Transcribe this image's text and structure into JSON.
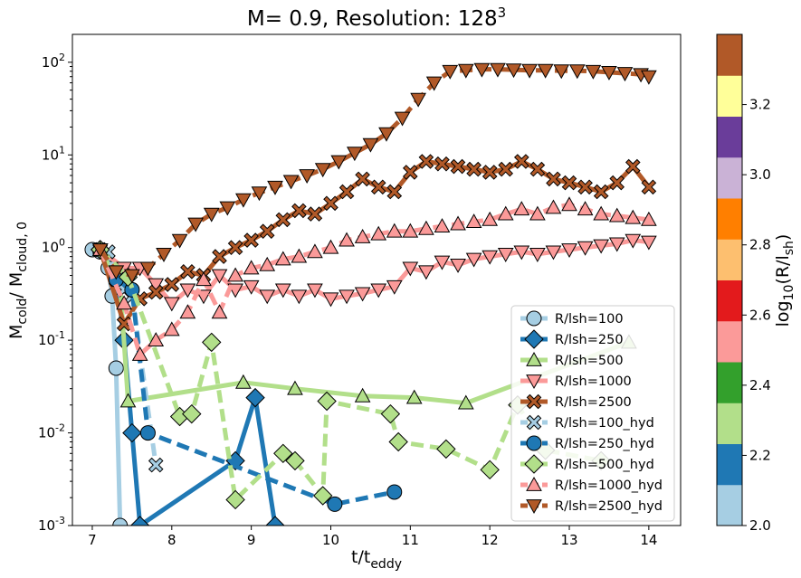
{
  "chart_data": {
    "type": "line",
    "title": "M= 0.9, Resolution: 128",
    "title_sup": "3",
    "xlabel": "t/t",
    "xlabel_sub": "eddy",
    "ylabel": "M",
    "ylabel_sub1": "cold",
    "ylabel_mid": "/ M",
    "ylabel_sub2": "cloud, 0",
    "xlim": [
      6.75,
      14.4
    ],
    "ylim": [
      0.001,
      200
    ],
    "yscale": "log",
    "xticks": [
      "7",
      "8",
      "9",
      "10",
      "11",
      "12",
      "13",
      "14"
    ],
    "yticks": [
      "10",
      "10",
      "10",
      "10",
      "10",
      "10"
    ],
    "yticks_exp": [
      "-3",
      "-2",
      "-1",
      "0",
      "1",
      "2"
    ],
    "grid": false,
    "legend_position": "lower right",
    "series": [
      {
        "name": "R/lsh=100",
        "color": "#a6cee3",
        "linestyle": "solid",
        "marker": "circle",
        "x": [
          7.0,
          7.1,
          7.2,
          7.25,
          7.3,
          7.35
        ],
        "y": [
          0.95,
          0.9,
          0.6,
          0.3,
          0.05,
          0.001
        ]
      },
      {
        "name": "R/lsh=250",
        "color": "#1f78b4",
        "linestyle": "solid",
        "marker": "diamond",
        "x": [
          7.1,
          7.3,
          7.4,
          7.5,
          7.6,
          8.8,
          9.05,
          9.3
        ],
        "y": [
          0.95,
          0.5,
          0.1,
          0.01,
          0.001,
          0.005,
          0.024,
          0.001
        ]
      },
      {
        "name": "R/lsh=500",
        "color": "#b2df8a",
        "linestyle": "solid",
        "marker": "triangle-up",
        "x": [
          7.1,
          7.35,
          7.45,
          8.9,
          9.55,
          10.4,
          11.05,
          11.7,
          13.75
        ],
        "y": [
          0.95,
          0.4,
          0.022,
          0.035,
          0.03,
          0.025,
          0.024,
          0.021,
          0.095
        ]
      },
      {
        "name": "R/lsh=1000",
        "color": "#fb9a99",
        "linestyle": "solid",
        "marker": "triangle-down",
        "x": [
          7.1,
          7.4,
          7.6,
          7.8,
          8.0,
          8.2,
          8.4,
          8.6,
          8.8,
          9.0,
          9.2,
          9.4,
          9.6,
          9.8,
          10.0,
          10.2,
          10.4,
          10.6,
          10.8,
          11.0,
          11.2,
          11.4,
          11.6,
          11.8,
          12.0,
          12.2,
          12.4,
          12.6,
          12.8,
          13.0,
          13.2,
          13.4,
          13.6,
          13.8,
          14.0
        ],
        "y": [
          0.95,
          0.6,
          0.6,
          0.4,
          0.25,
          0.35,
          0.3,
          0.5,
          0.35,
          0.38,
          0.3,
          0.35,
          0.3,
          0.35,
          0.28,
          0.3,
          0.32,
          0.35,
          0.38,
          0.6,
          0.55,
          0.7,
          0.65,
          0.75,
          0.8,
          0.85,
          0.9,
          0.85,
          0.9,
          0.95,
          1.0,
          1.05,
          1.1,
          1.2,
          1.15
        ]
      },
      {
        "name": "R/lsh=2500",
        "color": "#b15928",
        "linestyle": "solid",
        "marker": "x",
        "x": [
          7.1,
          7.4,
          7.6,
          7.8,
          8.0,
          8.2,
          8.4,
          8.6,
          8.8,
          9.0,
          9.2,
          9.4,
          9.6,
          9.8,
          10.0,
          10.2,
          10.4,
          10.6,
          10.8,
          11.0,
          11.2,
          11.4,
          11.6,
          11.8,
          12.0,
          12.2,
          12.4,
          12.6,
          12.8,
          13.0,
          13.2,
          13.4,
          13.6,
          13.8,
          14.0
        ],
        "y": [
          0.95,
          0.15,
          0.28,
          0.33,
          0.4,
          0.55,
          0.5,
          0.8,
          1.0,
          1.2,
          1.5,
          2.0,
          2.5,
          2.3,
          3.0,
          4.0,
          5.5,
          4.5,
          4.0,
          6.5,
          8.5,
          8.0,
          7.5,
          7.0,
          6.5,
          7.0,
          8.5,
          7.0,
          5.5,
          5.0,
          4.5,
          4.0,
          5.0,
          7.5,
          4.5
        ]
      },
      {
        "name": "R/lsh=100_hyd",
        "color": "#a6cee3",
        "linestyle": "dashed",
        "marker": "x",
        "x": [
          7.1,
          7.2,
          7.3,
          7.4,
          7.5,
          7.8
        ],
        "y": [
          0.95,
          0.9,
          0.45,
          0.35,
          0.3,
          0.0045
        ]
      },
      {
        "name": "R/lsh=250_hyd",
        "color": "#1f78b4",
        "linestyle": "dashed",
        "marker": "circle",
        "x": [
          7.1,
          7.3,
          7.5,
          7.7,
          10.05,
          10.8
        ],
        "y": [
          0.95,
          0.45,
          0.35,
          0.01,
          0.0017,
          0.0023
        ]
      },
      {
        "name": "R/lsh=500_hyd",
        "color": "#b2df8a",
        "linestyle": "dashed",
        "marker": "diamond",
        "x": [
          7.1,
          7.45,
          8.1,
          8.25,
          8.5,
          8.8,
          9.4,
          9.55,
          9.9,
          9.95,
          10.75,
          10.85,
          11.45,
          12.0,
          12.35,
          12.7,
          13.4
        ],
        "y": [
          0.95,
          0.48,
          0.015,
          0.016,
          0.095,
          0.0019,
          0.006,
          0.005,
          0.0021,
          0.022,
          0.016,
          0.008,
          0.0067,
          0.004,
          0.02,
          0.0065,
          0.005
        ]
      },
      {
        "name": "R/lsh=1000_hyd",
        "color": "#fb9a99",
        "linestyle": "dashed",
        "marker": "triangle-up",
        "x": [
          7.1,
          7.4,
          7.6,
          7.8,
          8.0,
          8.2,
          8.4,
          8.6,
          8.8,
          9.0,
          9.2,
          9.4,
          9.6,
          9.8,
          10.0,
          10.2,
          10.4,
          10.6,
          10.8,
          11.0,
          11.2,
          11.4,
          11.6,
          11.8,
          12.0,
          12.2,
          12.4,
          12.6,
          12.8,
          13.0,
          13.2,
          13.4,
          13.6,
          13.8,
          14.0
        ],
        "y": [
          0.95,
          0.25,
          0.07,
          0.1,
          0.13,
          0.2,
          0.45,
          0.2,
          0.5,
          0.6,
          0.65,
          0.75,
          0.8,
          0.9,
          1.0,
          1.2,
          1.3,
          1.4,
          1.5,
          1.5,
          1.6,
          1.7,
          1.8,
          1.9,
          2.0,
          2.3,
          2.6,
          2.3,
          2.7,
          2.9,
          2.6,
          2.3,
          2.2,
          2.1,
          2.0
        ]
      },
      {
        "name": "R/lsh=2500_hyd",
        "color": "#b15928",
        "linestyle": "dashed",
        "marker": "triangle-down",
        "x": [
          7.1,
          7.3,
          7.5,
          7.7,
          7.9,
          8.1,
          8.3,
          8.5,
          8.7,
          8.9,
          9.1,
          9.3,
          9.5,
          9.7,
          9.9,
          10.1,
          10.3,
          10.5,
          10.7,
          10.9,
          11.1,
          11.3,
          11.5,
          11.7,
          11.9,
          12.1,
          12.3,
          12.5,
          12.7,
          12.9,
          13.1,
          13.3,
          13.5,
          13.7,
          13.9,
          14.0
        ],
        "y": [
          0.95,
          0.55,
          0.5,
          0.6,
          0.85,
          1.2,
          1.8,
          2.3,
          2.7,
          3.3,
          3.9,
          4.5,
          5.2,
          6.0,
          7.0,
          8.5,
          10.5,
          13.0,
          17.0,
          25.0,
          40.0,
          60.0,
          80.0,
          82.0,
          84.0,
          84.0,
          83.0,
          82.0,
          82.0,
          81.0,
          81.0,
          80.0,
          78.0,
          76.0,
          74.0,
          70.0
        ]
      }
    ],
    "colorbar": {
      "label": "log",
      "label_sub": "10",
      "label_rest": "(R/l",
      "label_sub2": "sh",
      "label_end": ")",
      "range": [
        2.0,
        3.4
      ],
      "ticks": [
        "2.0",
        "2.2",
        "2.4",
        "2.6",
        "2.8",
        "3.0",
        "3.2"
      ],
      "colors": [
        "#a6cee3",
        "#1f78b4",
        "#b2df8a",
        "#33a02c",
        "#fb9a99",
        "#e31a1c",
        "#fdbf6f",
        "#ff7f00",
        "#cab2d6",
        "#6a3d9a",
        "#ffff99",
        "#b15928"
      ]
    }
  }
}
